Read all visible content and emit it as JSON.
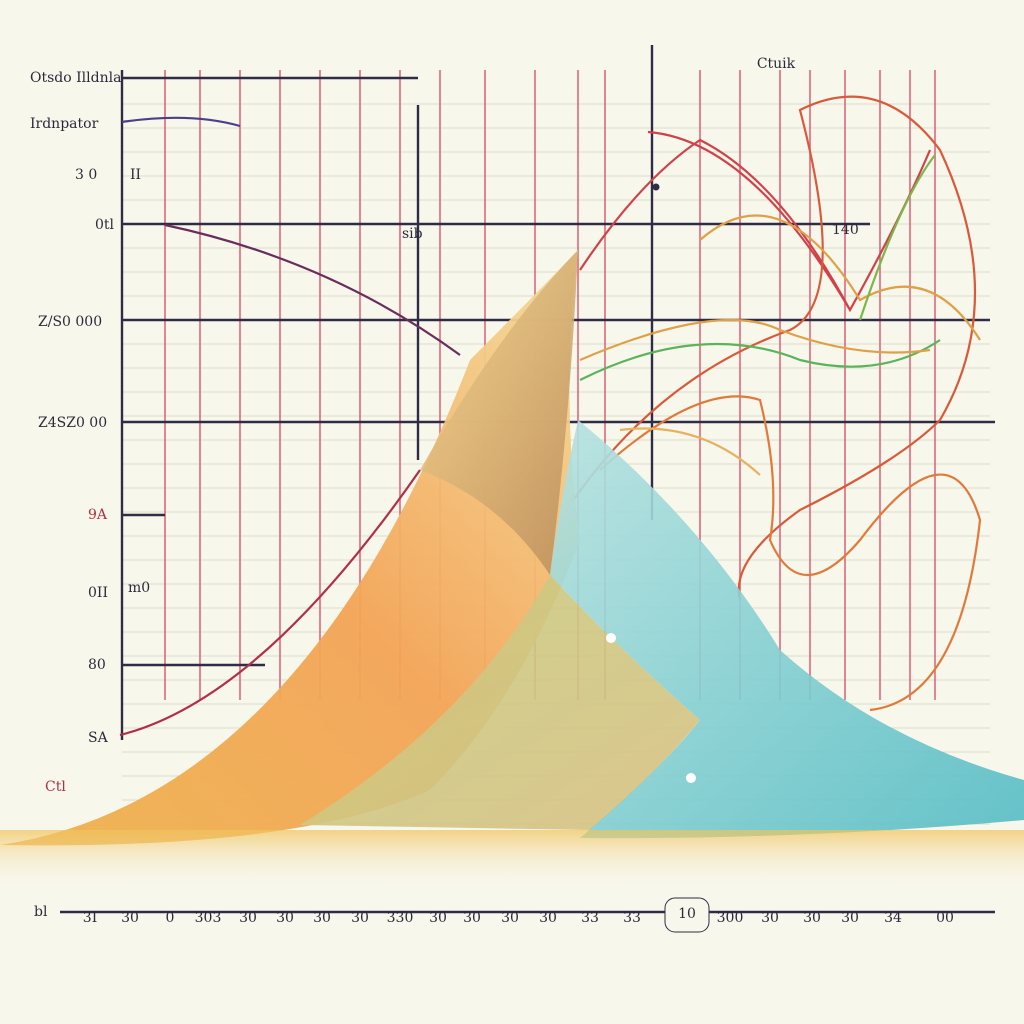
{
  "title": "Ctuik",
  "legend": "Otsdo Illdnla",
  "subtitle": "Irdnpator",
  "y_labels": [
    "3 0",
    "0tl",
    "Z/S0 000",
    "Z4SZ0 00",
    "9A",
    "0II",
    "80",
    "SA",
    "Ctl"
  ],
  "inner_labels": [
    "II",
    "sib",
    "140",
    "m0"
  ],
  "x_labels": [
    "3I",
    "30",
    "0",
    "303",
    "30",
    "30",
    "30",
    "30",
    "330",
    "30",
    "30",
    "30",
    "30",
    "33",
    "33",
    "300",
    "30",
    "30",
    "30",
    "34",
    "00"
  ],
  "x_marker": "10",
  "x_start": "bl"
}
